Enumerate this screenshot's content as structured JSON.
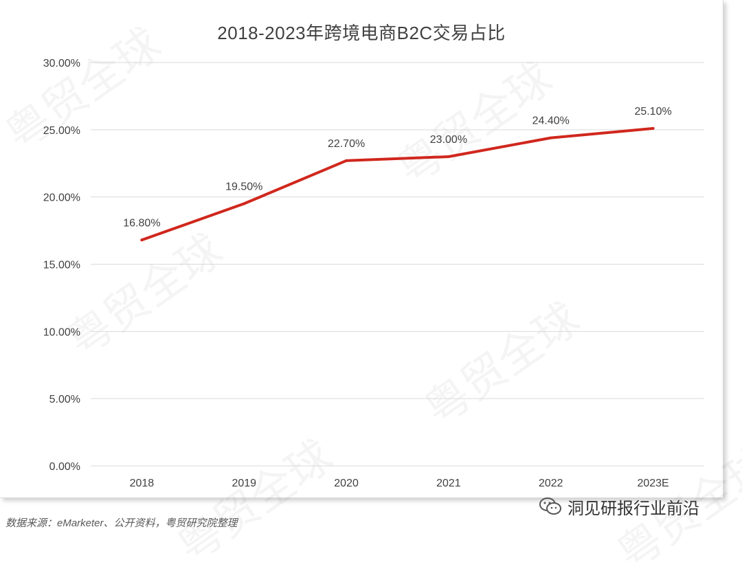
{
  "watermark": "粤贸全球",
  "source": "数据来源：eMarketer、公开资料，粤贸研究院整理",
  "wechat_account": "洞见研报行业前沿",
  "colors": {
    "line": "#d0271d",
    "grid": "#d9d9d9",
    "text": "#404040"
  },
  "chart_data": {
    "type": "line",
    "title": "2018-2023年跨境电商B2C交易占比",
    "categories": [
      "2018",
      "2019",
      "2020",
      "2021",
      "2022",
      "2023E"
    ],
    "values": [
      16.8,
      19.5,
      22.7,
      23.0,
      24.4,
      25.1
    ],
    "data_labels": [
      "16.80%",
      "19.50%",
      "22.70%",
      "23.00%",
      "24.40%",
      "25.10%"
    ],
    "y_ticks": [
      0,
      5,
      10,
      15,
      20,
      25,
      30
    ],
    "y_tick_labels": [
      "0.00%",
      "5.00%",
      "10.00%",
      "15.00%",
      "20.00%",
      "25.00%",
      "30.00%"
    ],
    "ylim": [
      0,
      30
    ],
    "xlabel": "",
    "ylabel": "",
    "grid": true,
    "legend": "none"
  }
}
